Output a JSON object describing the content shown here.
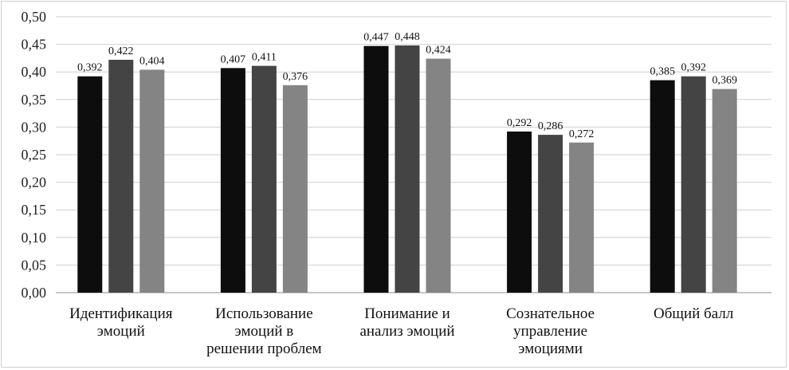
{
  "chart_data": {
    "type": "bar",
    "categories": [
      [
        "Идентификация",
        "эмоций"
      ],
      [
        "Использование",
        "эмоций в",
        "решении проблем"
      ],
      [
        "Понимание и",
        "анализ эмоций"
      ],
      [
        "Сознательное",
        "управление",
        "эмоциями"
      ],
      [
        "Общий балл"
      ]
    ],
    "series": [
      {
        "values": [
          0.392,
          0.407,
          0.447,
          0.292,
          0.385
        ],
        "color": "#0d0d0d",
        "labels": [
          "0,392",
          "0,407",
          "0,447",
          "0,292",
          "0,385"
        ]
      },
      {
        "values": [
          0.422,
          0.411,
          0.448,
          0.286,
          0.392
        ],
        "color": "#444444",
        "labels": [
          "0,422",
          "0,411",
          "0,448",
          "0,286",
          "0,392"
        ]
      },
      {
        "values": [
          0.404,
          0.376,
          0.424,
          0.272,
          0.369
        ],
        "color": "#848484",
        "labels": [
          "0,404",
          "0,376",
          "0,424",
          "0,272",
          "0,369"
        ]
      }
    ],
    "yticks": [
      "0,00",
      "0,05",
      "0,10",
      "0,15",
      "0,20",
      "0,25",
      "0,30",
      "0,35",
      "0,40",
      "0,45",
      "0,50"
    ],
    "ylim": [
      0,
      0.5
    ],
    "grid": true,
    "title": "",
    "xlabel": "",
    "ylabel": ""
  }
}
